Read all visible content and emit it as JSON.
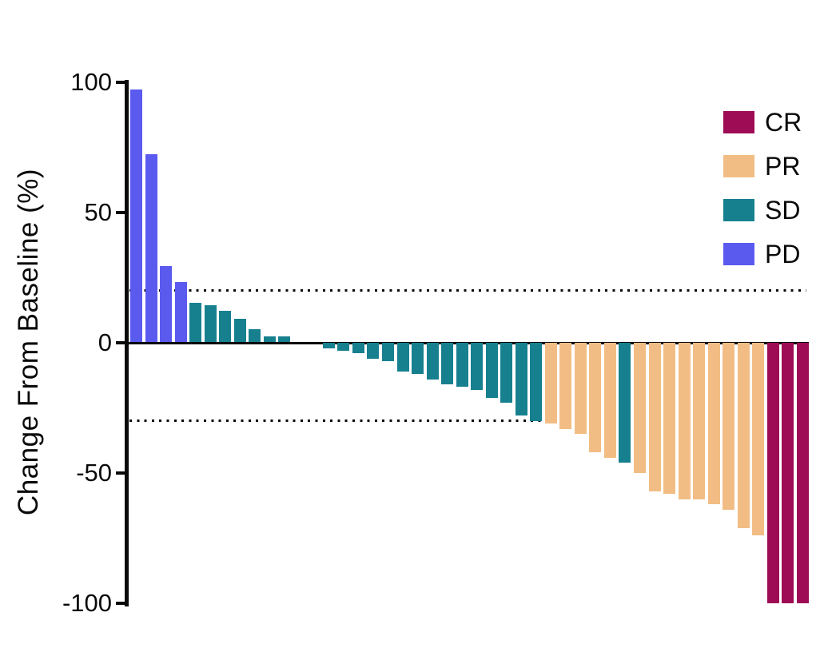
{
  "chart_data": {
    "type": "bar",
    "subtype": "waterfall",
    "title": "",
    "xlabel": "",
    "ylabel": "Change From Baseline (%)",
    "ylim": [
      -100,
      100
    ],
    "yticks": [
      100,
      50,
      0,
      -50,
      -100
    ],
    "ytick_labels": [
      "100",
      "50",
      "0",
      "-50",
      "-100"
    ],
    "reference_lines": [
      {
        "name": "progressive-disease-threshold",
        "value": 20
      },
      {
        "name": "partial-response-threshold",
        "value": -30
      }
    ],
    "grid": false,
    "legend_position": "top-right",
    "legend": [
      {
        "label": "CR",
        "color": "#9E0C55"
      },
      {
        "label": "PR",
        "color": "#F2BD84"
      },
      {
        "label": "SD",
        "color": "#17808F"
      },
      {
        "label": "PD",
        "color": "#5B5AEF"
      }
    ],
    "bars": [
      {
        "value": 97,
        "response": "PD"
      },
      {
        "value": 72,
        "response": "PD"
      },
      {
        "value": 29,
        "response": "PD"
      },
      {
        "value": 23,
        "response": "PD"
      },
      {
        "value": 15,
        "response": "SD"
      },
      {
        "value": 14,
        "response": "SD"
      },
      {
        "value": 12,
        "response": "SD"
      },
      {
        "value": 9,
        "response": "SD"
      },
      {
        "value": 5,
        "response": "SD"
      },
      {
        "value": 2,
        "response": "SD"
      },
      {
        "value": 2,
        "response": "SD"
      },
      {
        "value": 0,
        "response": "SD"
      },
      {
        "value": 0,
        "response": "SD"
      },
      {
        "value": -2,
        "response": "SD"
      },
      {
        "value": -3,
        "response": "SD"
      },
      {
        "value": -4,
        "response": "SD"
      },
      {
        "value": -6,
        "response": "SD"
      },
      {
        "value": -7,
        "response": "SD"
      },
      {
        "value": -11,
        "response": "SD"
      },
      {
        "value": -12,
        "response": "SD"
      },
      {
        "value": -14,
        "response": "SD"
      },
      {
        "value": -16,
        "response": "SD"
      },
      {
        "value": -17,
        "response": "SD"
      },
      {
        "value": -18,
        "response": "SD"
      },
      {
        "value": -21,
        "response": "SD"
      },
      {
        "value": -23,
        "response": "SD"
      },
      {
        "value": -28,
        "response": "SD"
      },
      {
        "value": -30,
        "response": "SD"
      },
      {
        "value": -31,
        "response": "PR"
      },
      {
        "value": -33,
        "response": "PR"
      },
      {
        "value": -35,
        "response": "PR"
      },
      {
        "value": -42,
        "response": "PR"
      },
      {
        "value": -44,
        "response": "PR"
      },
      {
        "value": -46,
        "response": "SD"
      },
      {
        "value": -50,
        "response": "PR"
      },
      {
        "value": -57,
        "response": "PR"
      },
      {
        "value": -58,
        "response": "PR"
      },
      {
        "value": -60,
        "response": "PR"
      },
      {
        "value": -60,
        "response": "PR"
      },
      {
        "value": -62,
        "response": "PR"
      },
      {
        "value": -64,
        "response": "PR"
      },
      {
        "value": -71,
        "response": "PR"
      },
      {
        "value": -74,
        "response": "PR"
      },
      {
        "value": -100,
        "response": "CR"
      },
      {
        "value": -100,
        "response": "CR"
      },
      {
        "value": -100,
        "response": "CR"
      }
    ],
    "axis_color": "#0a0a0a",
    "background_color": "#ffffff"
  }
}
